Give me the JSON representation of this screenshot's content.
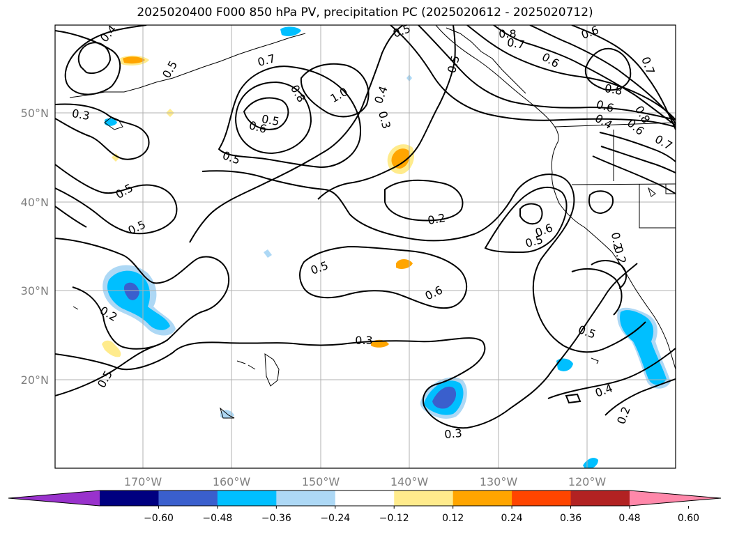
{
  "title": "2025020400 F000 850 hPa PV, precipitation PC (2025020612 - 2025020712)",
  "axes": {
    "lon_labels": [
      "170°W",
      "160°W",
      "150°W",
      "140°W",
      "130°W",
      "120°W"
    ],
    "lat_labels": [
      "50°N",
      "40°N",
      "30°N",
      "20°N"
    ],
    "tick_color": "#808080"
  },
  "colorbar": {
    "colors": [
      "#9932cc",
      "#000080",
      "#3a5fcd",
      "#00bfff",
      "#add8f5",
      "#ffffff",
      "#ffeb8c",
      "#ffa500",
      "#ff4500",
      "#b22222",
      "#ff88aa"
    ],
    "tick_labels": [
      "−0.60",
      "−0.48",
      "−0.36",
      "−0.24",
      "−0.12",
      "0.12",
      "0.24",
      "0.36",
      "0.48",
      "0.60"
    ]
  },
  "contour_labels": [
    "0.4",
    "0.5",
    "0.3",
    "0.5",
    "0.6",
    "0.5",
    "0.8",
    "1.0",
    "0.7",
    "0.4",
    "0.3",
    "0.5",
    "0.5",
    "0.5",
    "0.2",
    "0.5",
    "0.2",
    "0.6",
    "0.5",
    "0.6",
    "0.2",
    "0.3",
    "0.3",
    "0.5",
    "0.4",
    "0.2",
    "0.8",
    "0.7",
    "0.6",
    "0.6",
    "0.8",
    "0.6",
    "0.4",
    "0.8",
    "0.7",
    "0.5",
    "0.5",
    "0.7",
    "0.2",
    "0.6"
  ],
  "colors": {
    "contour": "#000000",
    "grid": "#b0b0b0",
    "neg_light": "#add8f5",
    "neg_mid": "#00bfff",
    "neg_dark": "#3a5fcd",
    "pos_light": "#ffeb8c",
    "pos_mid": "#ffa500"
  }
}
